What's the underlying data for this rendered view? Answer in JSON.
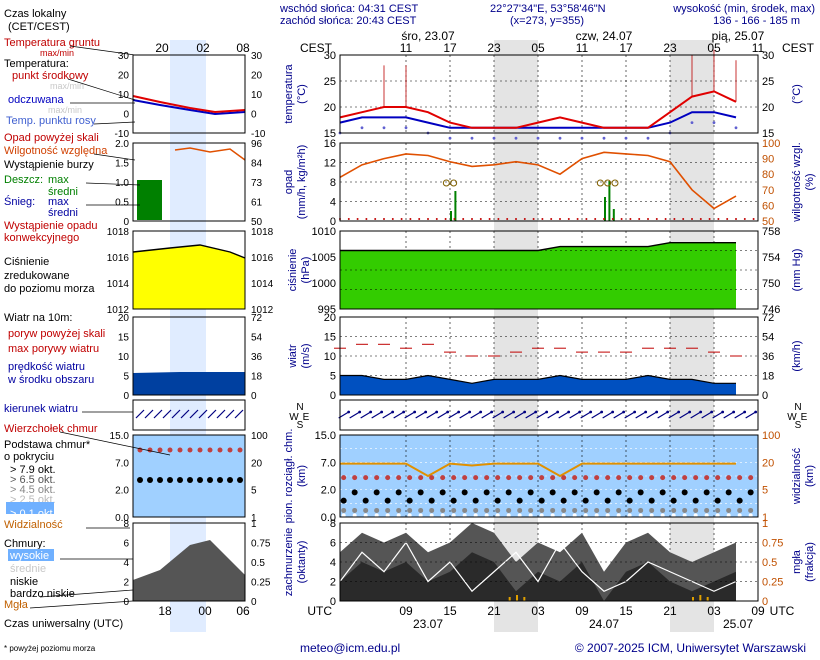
{
  "header": {
    "sunrise": "wschód słońca: 04:31 CEST",
    "sunset": "zachód słońca: 20:43 CEST",
    "coords": "22°27'34\"E, 53°58'46\"N",
    "grid": "(x=273, y=355)",
    "altitude_label": "wysokość (min, środek, max)",
    "altitude_values": "136 - 166 - 185 m"
  },
  "legend": {
    "local_time": "Czas lokalny",
    "local_time_zone": "(CET/CEST)",
    "hours_top": [
      "20",
      "02",
      "08"
    ],
    "hours_bottom": [
      "18",
      "00",
      "06"
    ],
    "ground_temp": "Temperatura gruntu",
    "ground_temp_sub": "max/min",
    "temp_title": "Temperatura:",
    "temp_mid": "punkt środkowy",
    "temp_maxmin": "max/min",
    "temp_feel": "odczuwana",
    "temp_feel_maxmin": "max/min",
    "dew": "Temp. punktu rosy",
    "precip_over": "Opad powyżej skali",
    "humidity": "Wilgotność względna",
    "storm": "Wystąpienie burzy",
    "rain": "Deszcz:",
    "rain_max": "max",
    "rain_avg": "średni",
    "snow": "Śnieg:",
    "snow_max": "max",
    "snow_avg": "średni",
    "conv": "Wystąpienie opadu",
    "conv2": "konwekcyjnego",
    "pressure1": "Ciśnienie",
    "pressure2": "zredukowane",
    "pressure3": "do poziomu morza",
    "wind_title": "Wiatr na 10m:",
    "gust_over": "poryw powyżej skali",
    "gust_max": "max porywy wiatru",
    "wind_speed1": "prędkość wiatru",
    "wind_speed2": "w środku obszaru",
    "wind_dir": "kierunek wiatru",
    "cb": "Wierzchołek chmur",
    "cloud_base1": "Podstawa chmur*",
    "cloud_base2": "o pokryciu",
    "okt": [
      "> 7.9 okt.",
      "> 6.5 okt.",
      "> 4.5 okt.",
      "> 2.5 okt.",
      "> 0.1 okt."
    ],
    "visibility": "Widzialność",
    "clouds": "Chmury:",
    "cl_high": "wysokie",
    "cl_mid": "średnie",
    "cl_low": "niskie",
    "cl_vlow": "bardzo niskie",
    "fog": "Mgła",
    "utc": "Czas uniwersalny (UTC)",
    "footnote": "* powyżej poziomu morza"
  },
  "main": {
    "tz_top": "CEST",
    "tz_bottom": "UTC",
    "days_top": [
      "śro, 23.07",
      "czw, 24.07",
      "pią, 25.07"
    ],
    "hours_top": [
      "11",
      "17",
      "23",
      "05",
      "11",
      "17",
      "23",
      "05",
      "11",
      "17"
    ],
    "hours_bottom": [
      "09",
      "15",
      "21",
      "03",
      "09",
      "15",
      "21",
      "03",
      "09",
      "15"
    ],
    "dates_bottom": [
      "23.07",
      "24.07",
      "25.07"
    ],
    "axis_left": {
      "temp": [
        "temperatura",
        "(°C)"
      ],
      "precip": [
        "opad",
        "(mm/h, kg/m²h)"
      ],
      "pressure": [
        "ciśnienie",
        "(hPa)"
      ],
      "wind": [
        "wiatr",
        "(m/s)"
      ],
      "cloud": [
        "pion. rozciągł. chm.",
        "(km)"
      ],
      "cover": [
        "zachmurzenie",
        "(oktanty)"
      ]
    },
    "axis_right": {
      "temp": [
        "(°C)"
      ],
      "humidity": [
        "wilgotność wzgl.",
        "(%)"
      ],
      "pressure": [
        "(mm Hg)"
      ],
      "wind": [
        "(km/h)"
      ],
      "visibility": [
        "widzialność",
        "(km)"
      ],
      "fog": [
        "mgła",
        "(frakcja)"
      ]
    },
    "compass": {
      "n": "N",
      "w": "W",
      "s": "S",
      "e": "E"
    }
  },
  "footer": {
    "email": "meteo@icm.edu.pl",
    "copyright": "© 2007-2025 ICM, Uniwersytet Warszawski"
  },
  "colors": {
    "temp": "#e00000",
    "feel": "#0000c0",
    "humidity": "#e05000",
    "pressure_fill": "#33cc00",
    "wind": "#003399",
    "visibility": "#e09000",
    "night": "#e4e4e4",
    "sky": "#a0d0ff"
  },
  "chart_data": [
    {
      "type": "line",
      "title": "temperatura",
      "x_hours_utc": [
        0,
        3,
        6,
        9,
        12,
        15,
        18,
        21,
        24,
        27,
        30,
        33,
        36,
        39,
        42,
        45,
        48,
        51,
        54
      ],
      "series": [
        {
          "name": "punkt środkowy",
          "values": [
            18,
            19,
            20,
            20,
            19,
            17,
            16,
            16,
            16,
            17,
            18,
            17,
            16,
            16,
            16,
            19,
            22,
            23,
            21
          ]
        },
        {
          "name": "odczuwana",
          "values": [
            17,
            18,
            18,
            18,
            17,
            16,
            16,
            16,
            16,
            16,
            16,
            16,
            16,
            16,
            16,
            17,
            19,
            19,
            18
          ]
        }
      ],
      "ylim": [
        15,
        30
      ]
    },
    {
      "type": "line",
      "title": "wilgotność wzgl.",
      "series": [
        {
          "name": "wilgotność wzgl.",
          "values": [
            78,
            86,
            90,
            93,
            92,
            88,
            85,
            86,
            88,
            86,
            80,
            90,
            94,
            93,
            92,
            88,
            70,
            58,
            66
          ]
        }
      ],
      "ylim": [
        50,
        100
      ]
    },
    {
      "type": "area",
      "title": "ciśnienie",
      "series": [
        {
          "name": "ciśnienie",
          "values": [
            1010,
            1010,
            1010,
            1010,
            1010,
            1010,
            1010,
            1010,
            1010,
            1010,
            1011,
            1011,
            1011,
            1011,
            1011,
            1012,
            1012,
            1012,
            1012
          ]
        }
      ],
      "ylim": [
        995,
        1015
      ]
    },
    {
      "type": "area",
      "title": "wiatr",
      "series": [
        {
          "name": "prędkość wiatru",
          "values": [
            5,
            5,
            4,
            4,
            5,
            4,
            3,
            4,
            4,
            4,
            5,
            4,
            4,
            4,
            5,
            4,
            4,
            3,
            3
          ]
        },
        {
          "name": "max porywy wiatru",
          "values": [
            12,
            13,
            13,
            12,
            13,
            11,
            10,
            10,
            11,
            12,
            12,
            11,
            11,
            11,
            12,
            12,
            12,
            11,
            10
          ]
        }
      ],
      "ylim": [
        0,
        20
      ]
    },
    {
      "type": "line",
      "title": "widzialność",
      "series": [
        {
          "name": "widzialność",
          "values": [
            20,
            20,
            20,
            20,
            10,
            20,
            18,
            20,
            20,
            20,
            10,
            20,
            20,
            20,
            20,
            20,
            20,
            20,
            20
          ]
        }
      ],
      "ylim": [
        0,
        100
      ]
    }
  ]
}
